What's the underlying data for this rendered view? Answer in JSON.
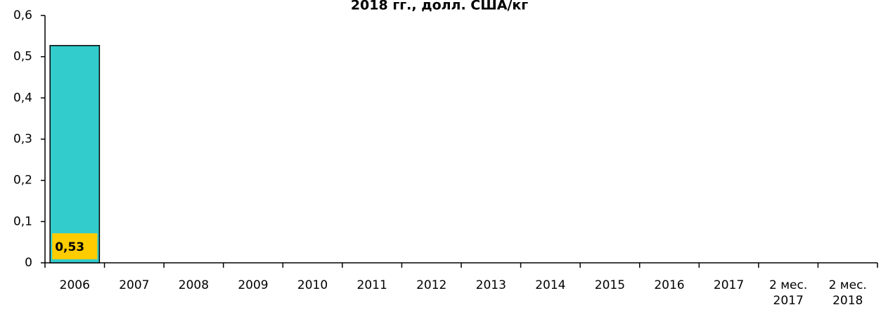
{
  "chart_data": {
    "type": "bar",
    "title": "2018 гг.,  долл. США/кг",
    "categories": [
      "2006",
      "2007",
      "2008",
      "2009",
      "2010",
      "2011",
      "2012",
      "2013",
      "2014",
      "2015",
      "2016",
      "2017",
      "2 мес. 2017",
      "2 мес. 2018"
    ],
    "values": [
      0.527,
      null,
      null,
      null,
      null,
      null,
      null,
      null,
      null,
      null,
      null,
      null,
      null,
      null
    ],
    "value_labels": [
      "0,53",
      null,
      null,
      null,
      null,
      null,
      null,
      null,
      null,
      null,
      null,
      null,
      null,
      null
    ],
    "color": "#33cccc",
    "ylim": [
      0,
      0.6
    ],
    "yticks": [
      0,
      {
        "value": 0.1,
        "label": "0,1"
      },
      {
        "value": 0.2,
        "label": "0,2"
      },
      {
        "value": 0.3,
        "label": "0,3"
      },
      {
        "value": 0.4,
        "label": "0,4"
      },
      {
        "value": 0.5,
        "label": "0,5"
      },
      {
        "value": 0.6,
        "label": "0,6"
      }
    ],
    "grid": false
  }
}
